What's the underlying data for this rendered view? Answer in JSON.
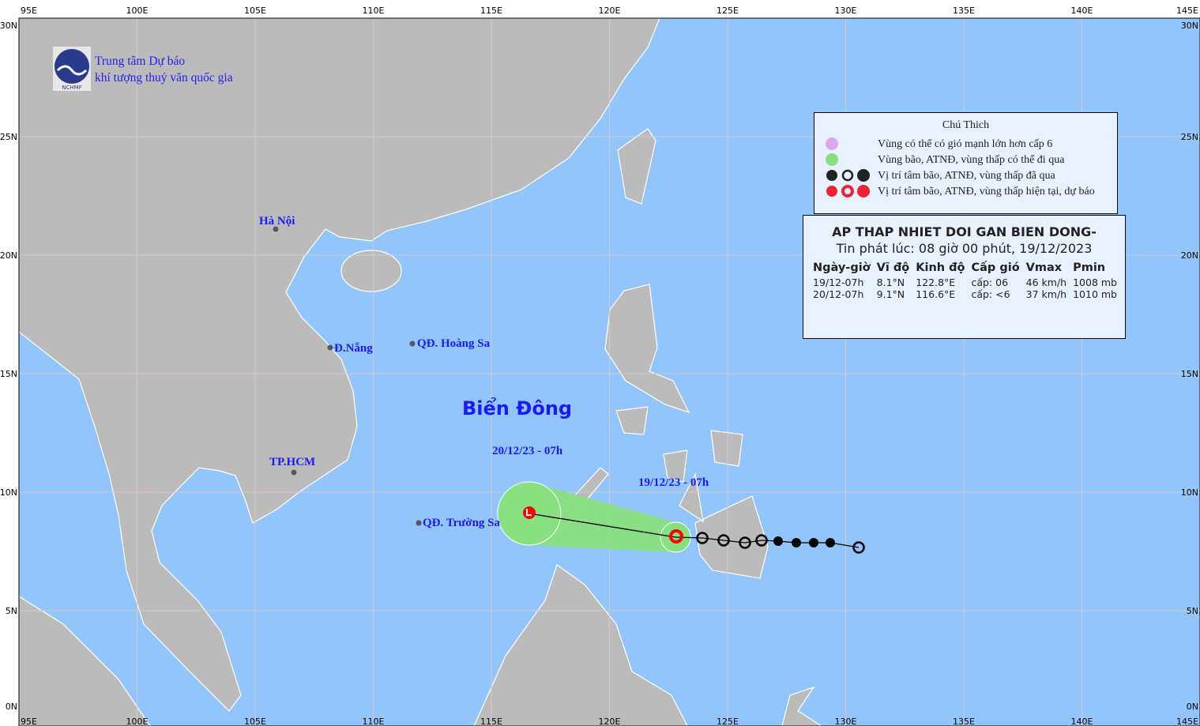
{
  "org": {
    "line1": "Trung tâm Dự báo",
    "line2": "khí tượng thuỷ văn quốc gia",
    "logo_text": "NCHMF"
  },
  "axes": {
    "lon_ticks": [
      "95E",
      "100E",
      "105E",
      "110E",
      "115E",
      "120E",
      "125E",
      "130E",
      "135E",
      "140E",
      "145E"
    ],
    "lat_ticks": [
      "30N",
      "25N",
      "20N",
      "15N",
      "10N",
      "5N",
      "0N"
    ]
  },
  "places": {
    "hanoi": "Hà Nội",
    "danang": "Đ.Nẵng",
    "hcm": "TP.HCM",
    "hoangsa": "QĐ. Hoàng Sa",
    "truongsa": "QĐ. Trường Sa",
    "biendong": "Biển Đông"
  },
  "track": {
    "current_label": "19/12/23 - 07h",
    "forecast_label": "20/12/23 - 07h",
    "current": {
      "lat": 8.1,
      "lon": 122.8
    },
    "forecast": {
      "lat": 9.1,
      "lon": 116.6
    },
    "colors": {
      "current": "#ff0000",
      "past": "#000000",
      "cone": "#88e080"
    }
  },
  "legend": {
    "title": "Chú Thich",
    "items": [
      {
        "icon": "pink-circle",
        "color": "#dda8f0",
        "label": "Vùng có thể có gió mạnh lớn hơn cấp 6"
      },
      {
        "icon": "green-circle",
        "color": "#88e080",
        "label": "Vùng bão, ATNĐ, vùng thấp có thể đi qua"
      },
      {
        "icon": "black-storm-symbols",
        "color": "#222222",
        "label": "Vị trí tâm bão, ATNĐ, vùng thấp đã qua"
      },
      {
        "icon": "red-storm-symbols",
        "color": "#ee2233",
        "label": "Vị trí tâm bão, ATNĐ, vùng thấp hiện tại, dự báo"
      }
    ]
  },
  "info": {
    "title": "AP THAP NHIET DOI GAN BIEN DONG-",
    "issued": "Tin phát lúc: 08 giờ 00 phút, 19/12/2023",
    "headers": [
      "Ngày-giờ",
      "Vĩ độ",
      "Kinh độ",
      "Cấp gió",
      "Vmax",
      "Pmin"
    ],
    "rows": [
      [
        "19/12-07h",
        "8.1°N",
        "122.8°E",
        "cấp: 06",
        "46 km/h",
        "1008 mb"
      ],
      [
        "20/12-07h",
        "9.1°N",
        "116.6°E",
        "cấp: <6",
        "37 km/h",
        "1010 mb"
      ]
    ]
  }
}
